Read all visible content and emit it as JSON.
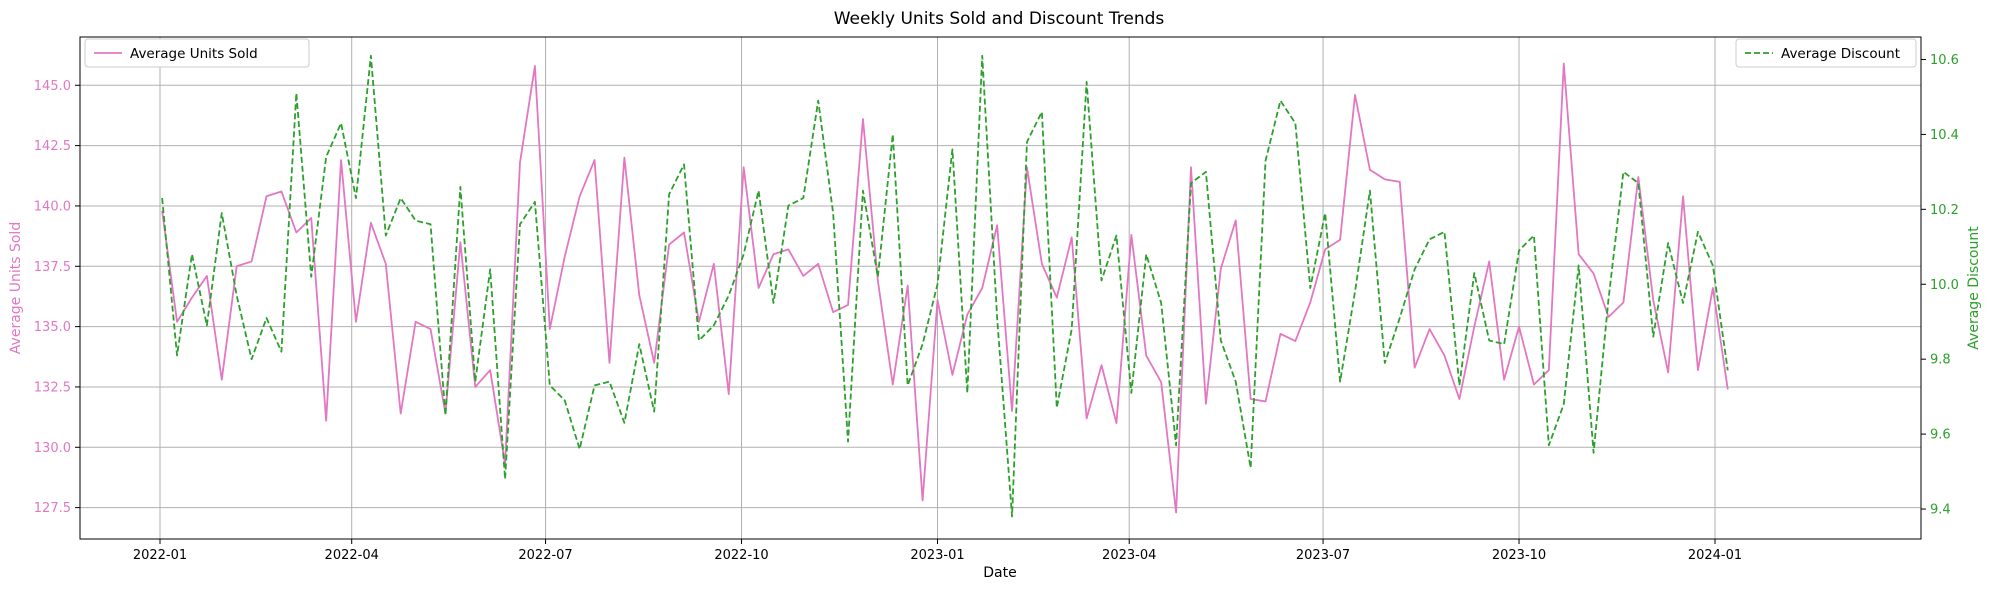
{
  "chart_data": {
    "type": "line",
    "title": "Weekly Units Sold and Discount Trends",
    "xlabel": "Date",
    "ylabel_left": "Average Units Sold",
    "ylabel_right": "Average Discount",
    "x_ticks": [
      "2022-01",
      "2022-04",
      "2022-07",
      "2022-10",
      "2023-01",
      "2023-04",
      "2023-07",
      "2023-10",
      "2024-01"
    ],
    "ylim_left": [
      126.2,
      147.0
    ],
    "yticks_left": [
      "127.5",
      "130.0",
      "132.5",
      "135.0",
      "137.5",
      "140.0",
      "142.5",
      "145.0"
    ],
    "ylim_right": [
      9.32,
      10.66
    ],
    "yticks_right": [
      "9.4",
      "9.6",
      "9.8",
      "10.0",
      "10.2",
      "10.4",
      "10.6"
    ],
    "grid": true,
    "colors": {
      "units": "#e377c2",
      "discount": "#2ca02c"
    },
    "legend_left": {
      "label": "Average Units Sold",
      "placement": "upper-left"
    },
    "legend_right": {
      "label": "Average Discount",
      "placement": "upper-right"
    },
    "series": [
      {
        "name": "Average Units Sold",
        "axis": "left",
        "style": "solid",
        "x": [
          "2022-01-02",
          "2022-01-09",
          "2022-01-16",
          "2022-01-23",
          "2022-01-30",
          "2022-02-06",
          "2022-02-13",
          "2022-02-20",
          "2022-02-27",
          "2022-03-06",
          "2022-03-13",
          "2022-03-20",
          "2022-03-27",
          "2022-04-03",
          "2022-04-10",
          "2022-04-17",
          "2022-04-24",
          "2022-05-01",
          "2022-05-08",
          "2022-05-15",
          "2022-05-22",
          "2022-05-29",
          "2022-06-05",
          "2022-06-12",
          "2022-06-19",
          "2022-06-26",
          "2022-07-03",
          "2022-07-10",
          "2022-07-17",
          "2022-07-24",
          "2022-07-31",
          "2022-08-07",
          "2022-08-14",
          "2022-08-21",
          "2022-08-28",
          "2022-09-04",
          "2022-09-11",
          "2022-09-18",
          "2022-09-25",
          "2022-10-02",
          "2022-10-09",
          "2022-10-16",
          "2022-10-23",
          "2022-10-30",
          "2022-11-06",
          "2022-11-13",
          "2022-11-20",
          "2022-11-27",
          "2022-12-04",
          "2022-12-11",
          "2022-12-18",
          "2022-12-25",
          "2023-01-01",
          "2023-01-08",
          "2023-01-15",
          "2023-01-22",
          "2023-01-29",
          "2023-02-05",
          "2023-02-12",
          "2023-02-19",
          "2023-02-26",
          "2023-03-05",
          "2023-03-12",
          "2023-03-19",
          "2023-03-26",
          "2023-04-02",
          "2023-04-09",
          "2023-04-16",
          "2023-04-23",
          "2023-04-30",
          "2023-05-07",
          "2023-05-14",
          "2023-05-21",
          "2023-05-28",
          "2023-06-04",
          "2023-06-11",
          "2023-06-18",
          "2023-06-25",
          "2023-07-02",
          "2023-07-09",
          "2023-07-16",
          "2023-07-23",
          "2023-07-30",
          "2023-08-06",
          "2023-08-13",
          "2023-08-20",
          "2023-08-27",
          "2023-09-03",
          "2023-09-10",
          "2023-09-17",
          "2023-09-24",
          "2023-10-01",
          "2023-10-08",
          "2023-10-15",
          "2023-10-22",
          "2023-10-29",
          "2023-11-05",
          "2023-11-12",
          "2023-11-19",
          "2023-11-26",
          "2023-12-03",
          "2023-12-10",
          "2023-12-17",
          "2023-12-24",
          "2023-12-31",
          "2024-01-07"
        ],
        "values": [
          139.8,
          135.2,
          136.2,
          137.1,
          132.8,
          137.5,
          137.7,
          140.4,
          140.6,
          138.9,
          139.5,
          131.1,
          141.9,
          135.2,
          139.3,
          137.6,
          131.4,
          135.2,
          134.9,
          131.4,
          138.5,
          132.5,
          133.2,
          129.3,
          141.8,
          145.8,
          134.9,
          137.9,
          140.4,
          141.9,
          133.5,
          142.0,
          136.3,
          133.5,
          138.4,
          138.9,
          135.2,
          137.6,
          132.2,
          141.6,
          136.6,
          138.0,
          138.2,
          137.1,
          137.6,
          135.6,
          135.9,
          143.6,
          136.9,
          132.6,
          136.7,
          127.8,
          136.1,
          133.0,
          135.5,
          136.6,
          139.2,
          131.5,
          141.6,
          137.6,
          136.2,
          138.7,
          131.2,
          133.4,
          131.0,
          138.8,
          133.8,
          132.7,
          127.3,
          141.6,
          131.8,
          137.4,
          139.4,
          132.0,
          131.9,
          134.7,
          134.4,
          136.0,
          138.2,
          138.6,
          144.6,
          141.5,
          141.1,
          141.0,
          133.3,
          134.9,
          133.8,
          132.0,
          135.0,
          137.7,
          132.8,
          135.0,
          132.6,
          133.2,
          145.9,
          138.0,
          137.2,
          135.4,
          136.0,
          141.2,
          136.1,
          133.1,
          140.4,
          133.2,
          136.6,
          132.4
        ]
      },
      {
        "name": "Average Discount",
        "axis": "right",
        "style": "dashed",
        "x": [
          "2022-01-02",
          "2022-01-09",
          "2022-01-16",
          "2022-01-23",
          "2022-01-30",
          "2022-02-06",
          "2022-02-13",
          "2022-02-20",
          "2022-02-27",
          "2022-03-06",
          "2022-03-13",
          "2022-03-20",
          "2022-03-27",
          "2022-04-03",
          "2022-04-10",
          "2022-04-17",
          "2022-04-24",
          "2022-05-01",
          "2022-05-08",
          "2022-05-15",
          "2022-05-22",
          "2022-05-29",
          "2022-06-05",
          "2022-06-12",
          "2022-06-19",
          "2022-06-26",
          "2022-07-03",
          "2022-07-10",
          "2022-07-17",
          "2022-07-24",
          "2022-07-31",
          "2022-08-07",
          "2022-08-14",
          "2022-08-21",
          "2022-08-28",
          "2022-09-04",
          "2022-09-11",
          "2022-09-18",
          "2022-09-25",
          "2022-10-02",
          "2022-10-09",
          "2022-10-16",
          "2022-10-23",
          "2022-10-30",
          "2022-11-06",
          "2022-11-13",
          "2022-11-20",
          "2022-11-27",
          "2022-12-04",
          "2022-12-11",
          "2022-12-18",
          "2022-12-25",
          "2023-01-01",
          "2023-01-08",
          "2023-01-15",
          "2023-01-22",
          "2023-01-29",
          "2023-02-05",
          "2023-02-12",
          "2023-02-19",
          "2023-02-26",
          "2023-03-05",
          "2023-03-12",
          "2023-03-19",
          "2023-03-26",
          "2023-04-02",
          "2023-04-09",
          "2023-04-16",
          "2023-04-23",
          "2023-04-30",
          "2023-05-07",
          "2023-05-14",
          "2023-05-21",
          "2023-05-28",
          "2023-06-04",
          "2023-06-11",
          "2023-06-18",
          "2023-06-25",
          "2023-07-02",
          "2023-07-09",
          "2023-07-16",
          "2023-07-23",
          "2023-07-30",
          "2023-08-06",
          "2023-08-13",
          "2023-08-20",
          "2023-08-27",
          "2023-09-03",
          "2023-09-10",
          "2023-09-17",
          "2023-09-24",
          "2023-10-01",
          "2023-10-08",
          "2023-10-15",
          "2023-10-22",
          "2023-10-29",
          "2023-11-05",
          "2023-11-12",
          "2023-11-19",
          "2023-11-26",
          "2023-12-03",
          "2023-12-10",
          "2023-12-17",
          "2023-12-24",
          "2023-12-31",
          "2024-01-07"
        ],
        "values": [
          10.23,
          9.81,
          10.08,
          9.89,
          10.19,
          9.97,
          9.8,
          9.91,
          9.82,
          10.51,
          10.02,
          10.34,
          10.43,
          10.23,
          10.61,
          10.13,
          10.23,
          10.17,
          10.16,
          9.65,
          10.26,
          9.74,
          10.04,
          9.48,
          10.16,
          10.22,
          9.73,
          9.69,
          9.56,
          9.73,
          9.74,
          9.63,
          9.84,
          9.66,
          10.24,
          10.32,
          9.85,
          9.89,
          9.97,
          10.08,
          10.25,
          9.95,
          10.21,
          10.23,
          10.49,
          10.19,
          9.58,
          10.25,
          10.02,
          10.4,
          9.73,
          9.84,
          10.0,
          10.36,
          9.71,
          10.61,
          9.91,
          9.38,
          10.38,
          10.46,
          9.67,
          9.88,
          10.54,
          10.01,
          10.13,
          9.71,
          10.08,
          9.95,
          9.57,
          10.27,
          10.3,
          9.85,
          9.74,
          9.51,
          10.33,
          10.49,
          10.43,
          9.99,
          10.19,
          9.74,
          9.98,
          10.25,
          9.79,
          9.91,
          10.04,
          10.12,
          10.14,
          9.73,
          10.03,
          9.85,
          9.84,
          10.09,
          10.13,
          9.57,
          9.68,
          10.05,
          9.55,
          9.96,
          10.3,
          10.27,
          9.86,
          10.11,
          9.95,
          10.14,
          10.05,
          9.77
        ]
      }
    ]
  }
}
